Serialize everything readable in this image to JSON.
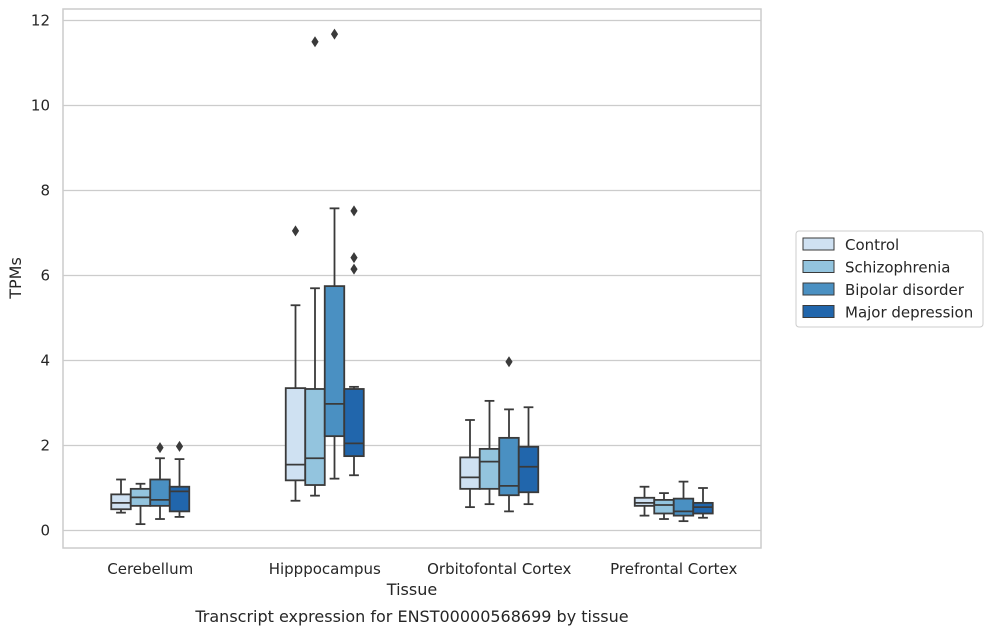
{
  "chart_data": {
    "type": "box",
    "title": "",
    "caption": "Transcript expression for ENST00000568699 by tissue",
    "xlabel": "Tissue",
    "ylabel": "TPMs",
    "ylim": [
      -0.4,
      12.25
    ],
    "yticks": [
      0,
      2,
      4,
      6,
      8,
      10,
      12
    ],
    "grid": "horizontal",
    "legend_position": "right",
    "categories": [
      "Cerebellum",
      "Hipppocampus",
      "Orbitofontal Cortex",
      "Prefrontal Cortex"
    ],
    "series": [
      {
        "name": "Control",
        "color": "#cfe1f2",
        "boxes": [
          {
            "whislo": 0.42,
            "q1": 0.5,
            "med": 0.65,
            "q3": 0.85,
            "whishi": 1.2,
            "fliers": []
          },
          {
            "whislo": 0.7,
            "q1": 1.18,
            "med": 1.55,
            "q3": 3.35,
            "whishi": 5.3,
            "fliers": [
              7.05
            ]
          },
          {
            "whislo": 0.55,
            "q1": 0.98,
            "med": 1.25,
            "q3": 1.72,
            "whishi": 2.6,
            "fliers": []
          },
          {
            "whislo": 0.35,
            "q1": 0.58,
            "med": 0.65,
            "q3": 0.77,
            "whishi": 1.03,
            "fliers": []
          }
        ]
      },
      {
        "name": "Schizophrenia",
        "color": "#93c4de",
        "boxes": [
          {
            "whislo": 0.15,
            "q1": 0.58,
            "med": 0.78,
            "q3": 0.98,
            "whishi": 1.1,
            "fliers": []
          },
          {
            "whislo": 0.82,
            "q1": 1.07,
            "med": 1.7,
            "q3": 3.33,
            "whishi": 5.7,
            "fliers": [
              11.5
            ]
          },
          {
            "whislo": 0.62,
            "q1": 0.98,
            "med": 1.62,
            "q3": 1.92,
            "whishi": 3.05,
            "fliers": []
          },
          {
            "whislo": 0.27,
            "q1": 0.4,
            "med": 0.6,
            "q3": 0.72,
            "whishi": 0.88,
            "fliers": []
          }
        ]
      },
      {
        "name": "Bipolar disorder",
        "color": "#4a90c2",
        "boxes": [
          {
            "whislo": 0.27,
            "q1": 0.58,
            "med": 0.72,
            "q3": 1.2,
            "whishi": 1.7,
            "fliers": [
              1.95
            ]
          },
          {
            "whislo": 1.22,
            "q1": 2.22,
            "med": 2.98,
            "q3": 5.75,
            "whishi": 7.58,
            "fliers": [
              11.68
            ]
          },
          {
            "whislo": 0.45,
            "q1": 0.83,
            "med": 1.05,
            "q3": 2.18,
            "whishi": 2.85,
            "fliers": [
              3.97
            ]
          },
          {
            "whislo": 0.22,
            "q1": 0.35,
            "med": 0.45,
            "q3": 0.75,
            "whishi": 1.15,
            "fliers": []
          }
        ]
      },
      {
        "name": "Major depression",
        "color": "#2166ac",
        "boxes": [
          {
            "whislo": 0.32,
            "q1": 0.45,
            "med": 0.92,
            "q3": 1.03,
            "whishi": 1.68,
            "fliers": [
              1.98
            ]
          },
          {
            "whislo": 1.3,
            "q1": 1.75,
            "med": 2.05,
            "q3": 3.33,
            "whishi": 3.38,
            "fliers": [
              6.15,
              6.42,
              7.52
            ]
          },
          {
            "whislo": 0.62,
            "q1": 0.9,
            "med": 1.5,
            "q3": 1.97,
            "whishi": 2.9,
            "fliers": []
          },
          {
            "whislo": 0.3,
            "q1": 0.4,
            "med": 0.55,
            "q3": 0.65,
            "whishi": 1.0,
            "fliers": []
          }
        ]
      }
    ]
  }
}
